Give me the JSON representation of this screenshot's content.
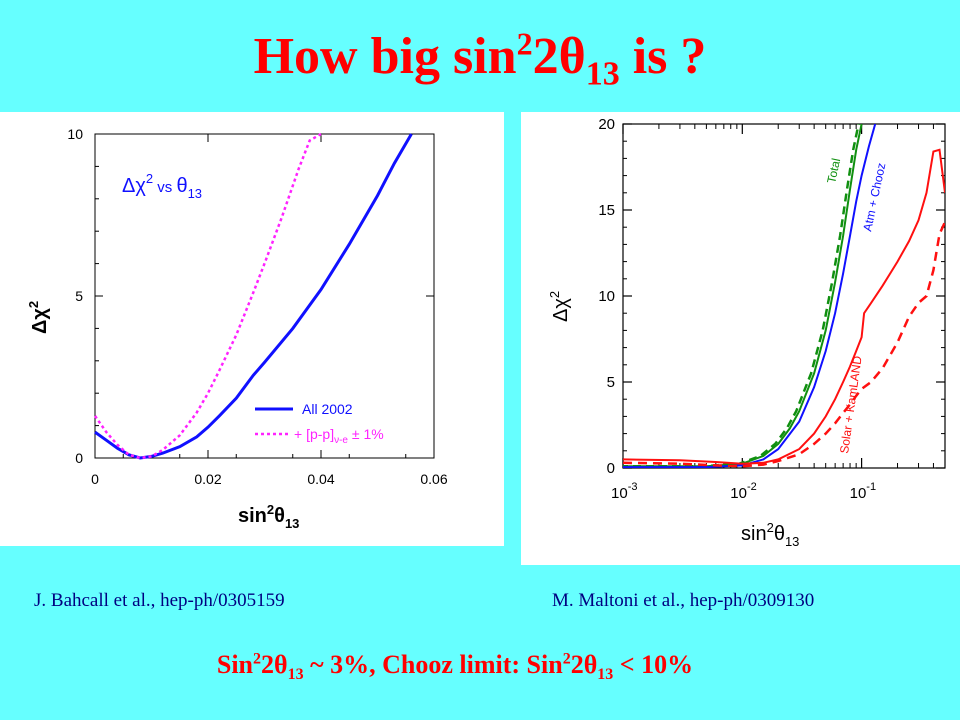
{
  "title": {
    "prefix": "How big sin",
    "sup": "2",
    "mid": "2θ",
    "sub": "13",
    "suffix": " is ?"
  },
  "citations": {
    "left": "J. Bahcall et al., hep-ph/0305159",
    "right": "M. Maltoni et al.,  hep-ph/0309130"
  },
  "conclusion": {
    "p1": "Sin",
    "p1_sup": "2",
    "p1_mid": "2θ",
    "p1_sub": "13",
    "p2": " ~ 3%, Chooz limit: Sin",
    "p2_sup": "2",
    "p2_mid": "2θ",
    "p2_sub": "13",
    "p3": " < 10%"
  },
  "colors": {
    "background": "#66ffff",
    "title": "#ff0000",
    "citation": "#000080",
    "blue": "#1010ff",
    "magenta": "#ff22ff",
    "green": "#109010",
    "red": "#ff1010"
  },
  "chart_data": [
    {
      "type": "line",
      "annotation": {
        "main": "Δχ",
        "sup": "2",
        "vs": " vs ",
        "theta": "θ",
        "sub": "13"
      },
      "xlabel": {
        "main": "sin",
        "sup": "2",
        "theta": "θ",
        "sub": "13"
      },
      "ylabel": {
        "main": "Δχ",
        "sup": "2"
      },
      "xlim": [
        0,
        0.06
      ],
      "ylim": [
        0,
        10
      ],
      "xticks": [
        "0",
        "0.02",
        "0.04",
        "0.06"
      ],
      "yticks": [
        "0",
        "5",
        "10"
      ],
      "legend_position": "bottom-right",
      "series": [
        {
          "name": "All 2002",
          "style": "solid",
          "color": "#1010ff",
          "x": [
            0,
            0.002,
            0.004,
            0.006,
            0.008,
            0.01,
            0.012,
            0.015,
            0.018,
            0.02,
            0.022,
            0.025,
            0.028,
            0.03,
            0.035,
            0.04,
            0.045,
            0.05,
            0.053,
            0.056
          ],
          "y": [
            0.8,
            0.55,
            0.3,
            0.1,
            0.0,
            0.05,
            0.15,
            0.35,
            0.65,
            0.95,
            1.3,
            1.85,
            2.55,
            2.95,
            4.0,
            5.2,
            6.6,
            8.1,
            9.1,
            10.0
          ]
        },
        {
          "name": "+ [p-p]ν-e ± 1%",
          "name_main": "+ [p-p]",
          "name_sub": "ν-e",
          "name_tail": " ± 1%",
          "style": "dotted",
          "color": "#ff22ff",
          "x": [
            0,
            0.002,
            0.004,
            0.006,
            0.008,
            0.01,
            0.012,
            0.015,
            0.018,
            0.02,
            0.022,
            0.025,
            0.028,
            0.03,
            0.033,
            0.036,
            0.038,
            0.04
          ],
          "y": [
            1.3,
            0.8,
            0.4,
            0.1,
            0.0,
            0.05,
            0.25,
            0.7,
            1.4,
            2.0,
            2.7,
            3.8,
            5.1,
            6.0,
            7.4,
            8.9,
            9.8,
            10.0
          ]
        }
      ]
    },
    {
      "type": "line",
      "xlabel": {
        "main": "sin",
        "sup": "2",
        "theta": "θ",
        "sub": "13"
      },
      "ylabel": {
        "main": "Δχ",
        "sup": "2"
      },
      "xscale": "log",
      "xlim": [
        0.001,
        0.5
      ],
      "ylim": [
        0,
        20
      ],
      "xticks": [
        {
          "base": "10",
          "exp": "-3",
          "value": 0.001
        },
        {
          "base": "10",
          "exp": "-2",
          "value": 0.01
        },
        {
          "base": "10",
          "exp": "-1",
          "value": 0.1
        }
      ],
      "yticks": [
        "0",
        "5",
        "10",
        "15",
        "20"
      ],
      "series": [
        {
          "name": "Total",
          "color": "#109010",
          "style": "solid+dashed",
          "x": [
            0.001,
            0.005,
            0.01,
            0.015,
            0.02,
            0.025,
            0.03,
            0.04,
            0.05,
            0.06,
            0.07,
            0.08,
            0.09,
            0.1
          ],
          "y": [
            0.1,
            0.1,
            0.25,
            0.7,
            1.4,
            2.3,
            3.3,
            5.5,
            8.0,
            10.8,
            13.5,
            16.2,
            18.5,
            20.0
          ]
        },
        {
          "name": "Atm + Chooz",
          "color": "#1010ff",
          "style": "solid",
          "x": [
            0.001,
            0.005,
            0.01,
            0.015,
            0.02,
            0.03,
            0.04,
            0.05,
            0.06,
            0.07,
            0.08,
            0.09,
            0.1,
            0.115,
            0.13
          ],
          "y": [
            0.05,
            0.05,
            0.15,
            0.5,
            1.1,
            2.7,
            4.7,
            6.8,
            9.0,
            11.3,
            13.5,
            15.5,
            17.0,
            18.7,
            20.0
          ]
        },
        {
          "name": "Solar + KamLAND",
          "color": "#ff1010",
          "style": "solid",
          "x": [
            0.001,
            0.003,
            0.006,
            0.01,
            0.015,
            0.02,
            0.03,
            0.04,
            0.05,
            0.06,
            0.07,
            0.08,
            0.09,
            0.1,
            0.105,
            0.12,
            0.15,
            0.2,
            0.25,
            0.3,
            0.35,
            0.4,
            0.45,
            0.5
          ],
          "y": [
            0.5,
            0.45,
            0.35,
            0.25,
            0.3,
            0.5,
            1.1,
            2.0,
            3.0,
            4.0,
            5.0,
            5.9,
            6.8,
            7.6,
            9.0,
            9.6,
            10.6,
            12.0,
            13.2,
            14.4,
            16.0,
            18.4,
            18.5,
            16.0
          ]
        },
        {
          "name": "Solar + KamLAND (dashed)",
          "color": "#ff1010",
          "style": "dashed",
          "x": [
            0.001,
            0.003,
            0.006,
            0.01,
            0.015,
            0.02,
            0.03,
            0.04,
            0.05,
            0.06,
            0.07,
            0.08,
            0.09,
            0.1,
            0.12,
            0.15,
            0.2,
            0.25,
            0.3,
            0.35,
            0.4,
            0.45,
            0.5
          ],
          "y": [
            0.3,
            0.25,
            0.15,
            0.1,
            0.2,
            0.4,
            0.8,
            1.4,
            2.0,
            2.6,
            3.2,
            3.7,
            4.2,
            4.6,
            5.0,
            5.8,
            7.3,
            8.8,
            9.6,
            10.0,
            11.5,
            13.6,
            14.3
          ]
        }
      ]
    }
  ]
}
